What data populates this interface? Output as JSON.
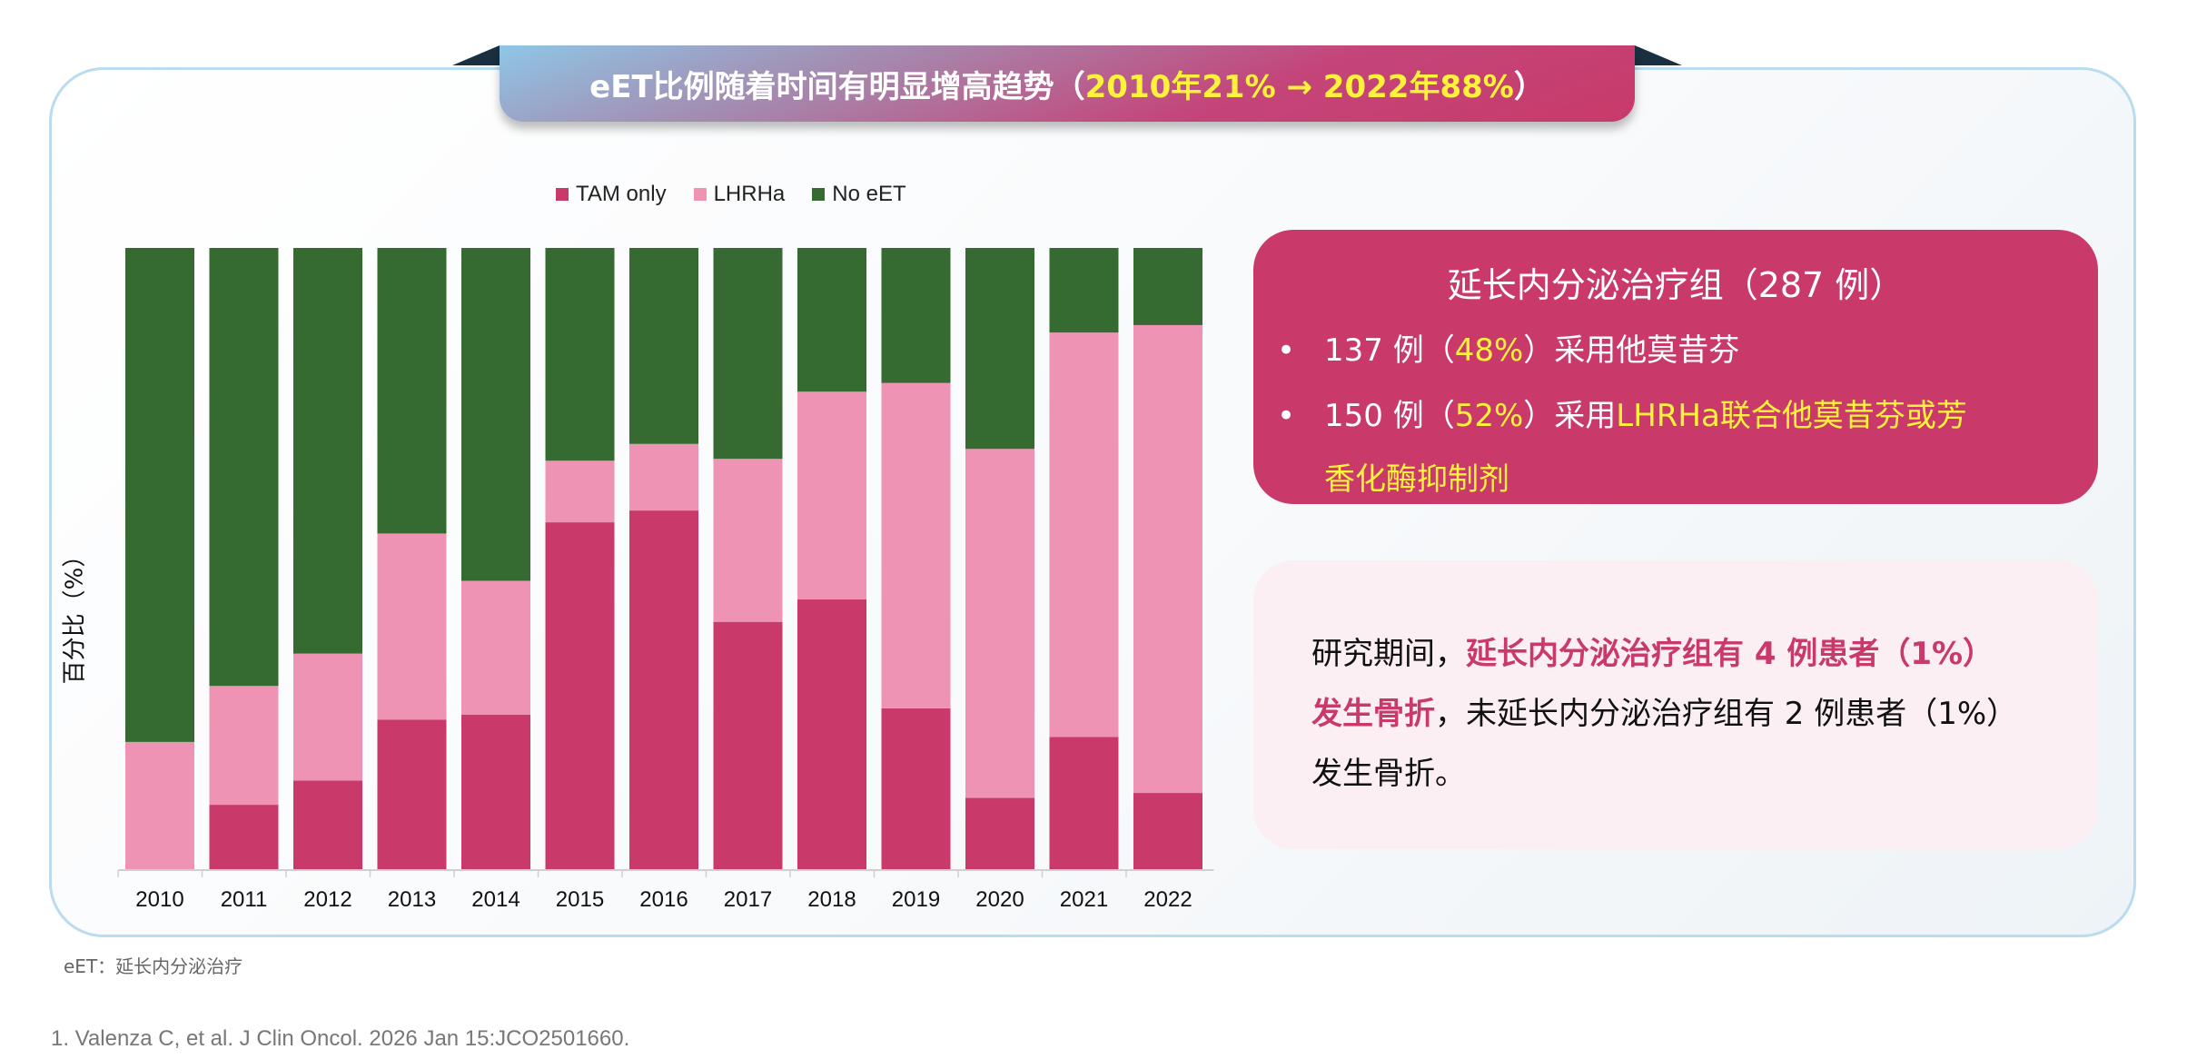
{
  "banner": {
    "text_main": "eET比例随着时间有明显增高趋势（",
    "text_highlight": "2010年21% → 2022年88%",
    "text_end": "）"
  },
  "chart_data": {
    "type": "bar",
    "stacked": true,
    "percent": true,
    "categories": [
      "2010",
      "2011",
      "2012",
      "2013",
      "2014",
      "2015",
      "2016",
      "2017",
      "2018",
      "2019",
      "2020",
      "2021",
      "2022"
    ],
    "series": [
      {
        "name": "TAM only",
        "color": "#c93a6a",
        "values": [
          0,
          10.5,
          14.4,
          24.2,
          25.0,
          55.9,
          57.8,
          39.9,
          43.5,
          26.0,
          11.6,
          21.4,
          12.4
        ]
      },
      {
        "name": "LHRHa",
        "color": "#ee93b3",
        "values": [
          20.6,
          19.1,
          20.4,
          29.9,
          21.5,
          9.9,
          10.7,
          26.2,
          33.4,
          52.3,
          56.1,
          65.0,
          75.2
        ]
      },
      {
        "name": "No eET",
        "color": "#356b30",
        "values": [
          79.4,
          70.4,
          65.2,
          45.9,
          53.5,
          34.2,
          31.5,
          33.9,
          23.1,
          21.7,
          32.3,
          13.6,
          12.4
        ]
      }
    ],
    "ylabel": "百分比（%）",
    "xlabel": "",
    "ylim": [
      0,
      100
    ],
    "grid": false,
    "legend_position": "top"
  },
  "box1": {
    "title": "延长内分泌治疗组（287 例）",
    "bullet1_pre": "137 例（",
    "bullet1_hl": "48%",
    "bullet1_post": "）采用他莫昔芬",
    "bullet2_pre": "150 例（",
    "bullet2_hl": "52%",
    "bullet2_mid": "）采用",
    "bullet2_hl2": "LHRHa联合他莫昔芬或芳",
    "bullet2_hl3": "香化酶抑制剂"
  },
  "box2": {
    "t1": "研究期间，",
    "t2": "延长内分泌治疗组有 4 例患者（1%）",
    "t3": "发生骨折",
    "t4": "，未延长内分泌治疗组有 2 例患者（1%）",
    "t5": "发生骨折。"
  },
  "footnote": "eET：延长内分泌治疗",
  "reference": "1.   Valenza C, et al. J Clin Oncol. 2026 Jan 15:JCO2501660."
}
